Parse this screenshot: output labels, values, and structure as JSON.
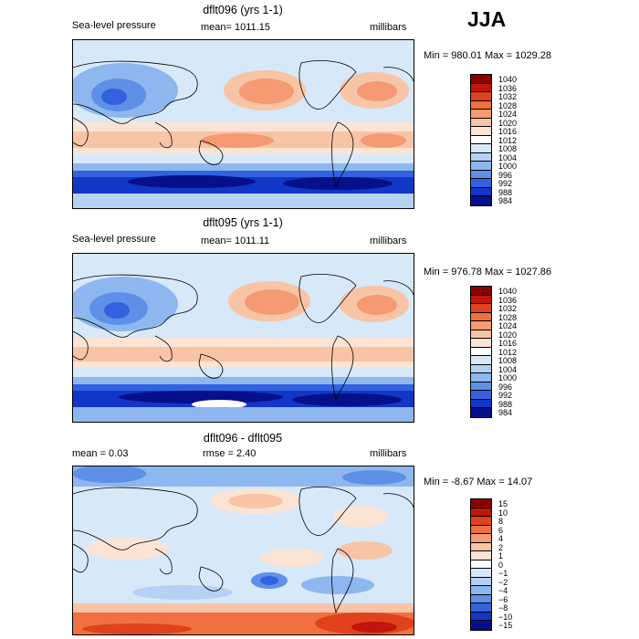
{
  "season": "JJA",
  "colors": {
    "c1040": "#8b0000",
    "c1036": "#c0150a",
    "c1032": "#e0421d",
    "c1028": "#f0703f",
    "c1024": "#f59a72",
    "c1020": "#f8c4a6",
    "c1016": "#fbe4d4",
    "c1012": "#ffffff",
    "c1008": "#d7e8f8",
    "c1004": "#b6d2f3",
    "c1000": "#8db7ee",
    "c996": "#5e90e8",
    "c992": "#3262e0",
    "c988": "#1236c6",
    "c984": "#05108a"
  },
  "panels": [
    {
      "title": "dflt096 (yrs 1-1)",
      "field": "Sea-level pressure",
      "mean_text": "mean= 1011.15",
      "units": "millibars",
      "minmax": "Min = 980.01 Max = 1029.28",
      "levels": [
        "1040",
        "1036",
        "1032",
        "1028",
        "1024",
        "1020",
        "1016",
        "1012",
        "1008",
        "1004",
        "1000",
        "996",
        "992",
        "988",
        "984"
      ]
    },
    {
      "title": "dflt095 (yrs 1-1)",
      "field": "Sea-level pressure",
      "mean_text": "mean= 1011.11",
      "units": "millibars",
      "minmax": "Min = 976.78 Max = 1027.86",
      "levels": [
        "1040",
        "1036",
        "1032",
        "1028",
        "1024",
        "1020",
        "1016",
        "1012",
        "1008",
        "1004",
        "1000",
        "996",
        "992",
        "988",
        "984"
      ]
    },
    {
      "title": "dflt096 - dflt095",
      "mean_text": "mean =    0.03",
      "rmse_text": "rmse =    2.40",
      "units": "millibars",
      "minmax": "Min =  -8.67 Max =  14.07",
      "levels": [
        "15",
        "10",
        "8",
        "6",
        "4",
        "2",
        "1",
        "0",
        "−1",
        "−2",
        "−4",
        "−6",
        "−8",
        "−10",
        "−15"
      ]
    }
  ]
}
